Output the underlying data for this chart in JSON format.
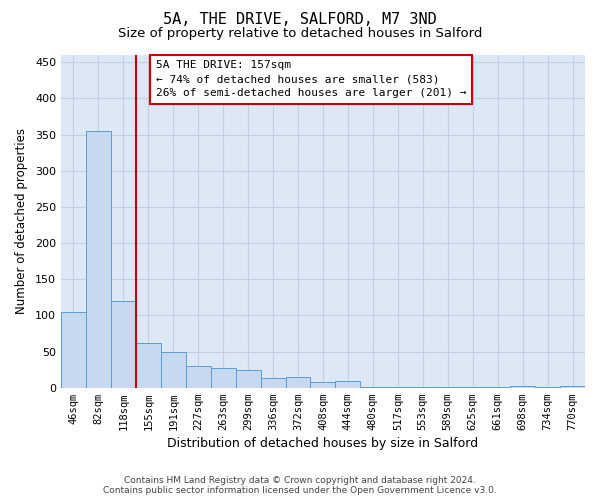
{
  "title_line1": "5A, THE DRIVE, SALFORD, M7 3ND",
  "title_line2": "Size of property relative to detached houses in Salford",
  "xlabel": "Distribution of detached houses by size in Salford",
  "ylabel": "Number of detached properties",
  "categories": [
    "46sqm",
    "82sqm",
    "118sqm",
    "155sqm",
    "191sqm",
    "227sqm",
    "263sqm",
    "299sqm",
    "336sqm",
    "372sqm",
    "408sqm",
    "444sqm",
    "480sqm",
    "517sqm",
    "553sqm",
    "589sqm",
    "625sqm",
    "661sqm",
    "698sqm",
    "734sqm",
    "770sqm"
  ],
  "values": [
    105,
    355,
    120,
    62,
    50,
    30,
    27,
    24,
    13,
    15,
    8,
    9,
    1,
    1,
    1,
    1,
    1,
    1,
    3,
    1,
    3
  ],
  "bar_color": "#c6d9f0",
  "bar_edge_color": "#5b9bd5",
  "vline_x": 2.5,
  "vline_color": "#cc0000",
  "annotation_text": "5A THE DRIVE: 157sqm\n← 74% of detached houses are smaller (583)\n26% of semi-detached houses are larger (201) →",
  "annotation_box_facecolor": "#ffffff",
  "annotation_box_edgecolor": "#cc0000",
  "ylim": [
    0,
    460
  ],
  "yticks": [
    0,
    50,
    100,
    150,
    200,
    250,
    300,
    350,
    400,
    450
  ],
  "grid_color": "#c0d0e0",
  "plot_bg_color": "#dce8f5",
  "footnote": "Contains HM Land Registry data © Crown copyright and database right 2024.\nContains public sector information licensed under the Open Government Licence v3.0.",
  "title1_fontsize": 11,
  "title2_fontsize": 9.5,
  "xlabel_fontsize": 9,
  "ylabel_fontsize": 8.5,
  "ytick_fontsize": 8,
  "xtick_fontsize": 7.5,
  "annot_fontsize": 8,
  "footnote_fontsize": 6.5
}
